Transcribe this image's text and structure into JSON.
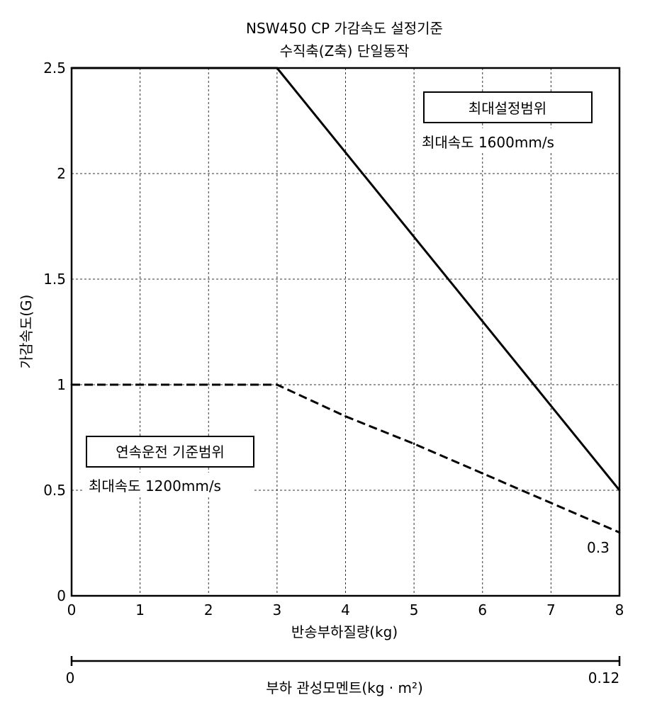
{
  "chart_data": {
    "type": "line",
    "title": "NSW450 CP 가감속도 설정기준",
    "subtitle": "수직축(Z축) 단일동작",
    "xlabel": "반송부하질량(kg)",
    "ylabel": "가감속도(G)",
    "xlim": [
      0,
      8
    ],
    "ylim": [
      0,
      2.5
    ],
    "x_ticks": [
      "0",
      "1",
      "2",
      "3",
      "4",
      "5",
      "6",
      "7",
      "8"
    ],
    "y_ticks": [
      "0",
      "0.5",
      "1",
      "1.5",
      "2",
      "2.5"
    ],
    "grid": true,
    "series": [
      {
        "name": "최대설정범위",
        "style": "solid",
        "x": [
          0,
          3,
          8
        ],
        "y": [
          2.5,
          2.5,
          0.5
        ]
      },
      {
        "name": "연속운전 기준범위",
        "style": "dashed",
        "x": [
          0,
          3,
          4,
          5,
          6,
          7,
          8
        ],
        "y": [
          1.0,
          1.0,
          0.85,
          0.72,
          0.58,
          0.44,
          0.3
        ]
      }
    ],
    "annotations": {
      "max_box": "최대설정범위",
      "max_speed": "최대속도 1600mm/s",
      "cont_box": "연속운전 기준범위",
      "cont_speed": "최대속도 1200mm/s",
      "end_value": "0.3"
    },
    "secondary_axis": {
      "label": "부하 관성모멘트(kg · m²)",
      "min_label": "0",
      "max_label": "0.12",
      "range": [
        0,
        0.12
      ]
    }
  }
}
